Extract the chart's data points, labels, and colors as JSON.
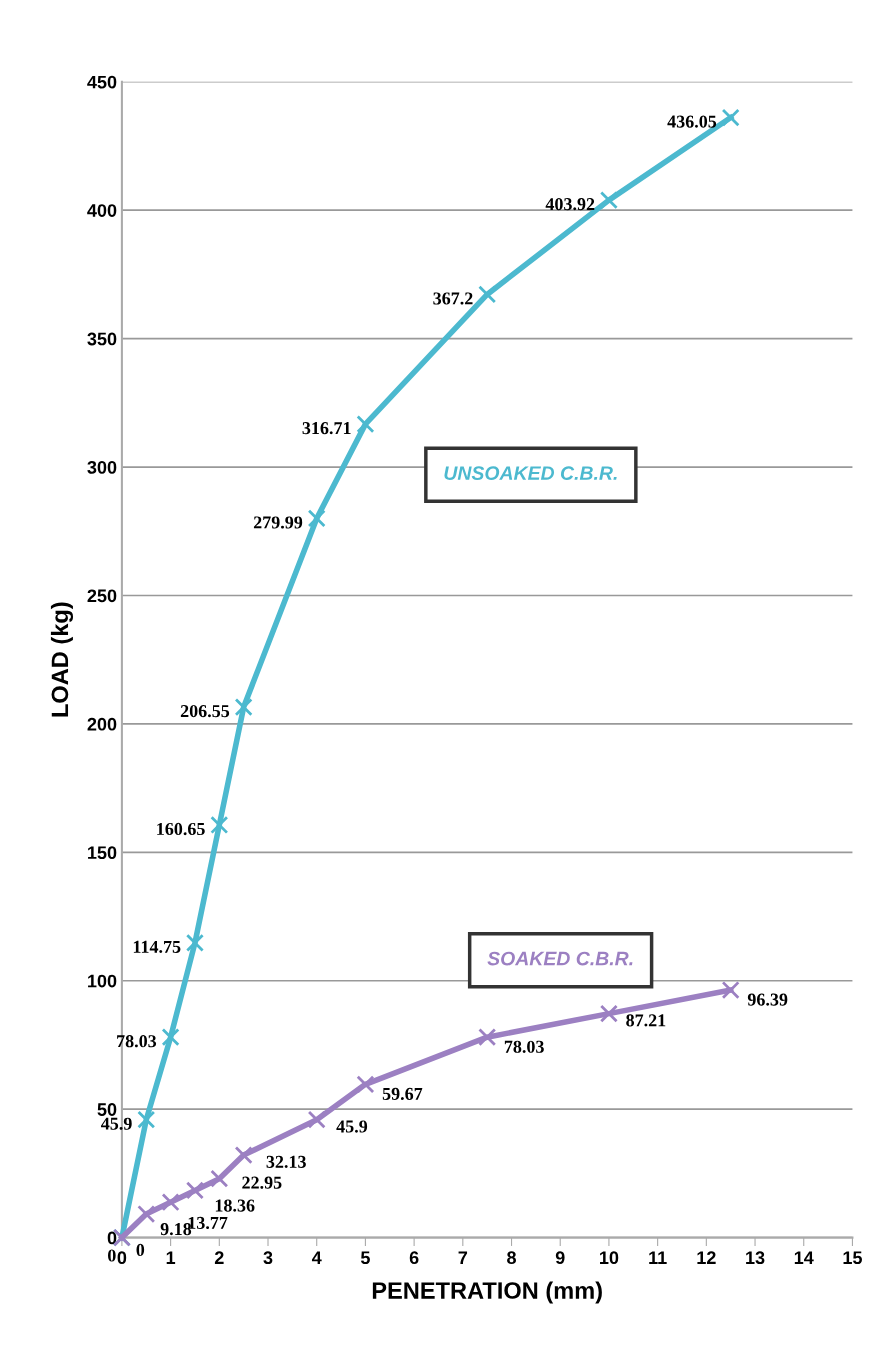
{
  "chart_data": {
    "type": "line",
    "xlabel": "PENETRATION (mm)",
    "ylabel": "LOAD (kg)",
    "xlim": [
      0,
      15
    ],
    "xticks": [
      0,
      1,
      2,
      3,
      4,
      5,
      6,
      7,
      8,
      9,
      10,
      11,
      12,
      13,
      14,
      15
    ],
    "ylim": [
      0,
      450
    ],
    "yticks": [
      0,
      50,
      100,
      150,
      200,
      250,
      300,
      350,
      400,
      450
    ],
    "grid": "y",
    "legend": false,
    "marker": "cross",
    "line_style": "solid",
    "data_labels": true,
    "series": [
      {
        "name": "UNSOAKED C.B.R.",
        "color": "#4cb9cf",
        "x": [
          0,
          0.5,
          1,
          1.5,
          2,
          2.5,
          4,
          5,
          7.5,
          10,
          12.5
        ],
        "values": [
          0,
          45.9,
          78.03,
          114.75,
          160.65,
          206.55,
          279.99,
          316.71,
          367.2,
          403.92,
          436.05
        ]
      },
      {
        "name": "SOAKED C.B.R.",
        "color": "#9c80c2",
        "x": [
          0,
          0.5,
          1,
          1.5,
          2,
          2.5,
          4,
          5,
          7.5,
          10,
          12.5
        ],
        "values": [
          0,
          9.18,
          13.77,
          18.36,
          22.95,
          32.13,
          45.9,
          59.67,
          78.03,
          87.21,
          96.39
        ]
      }
    ]
  }
}
